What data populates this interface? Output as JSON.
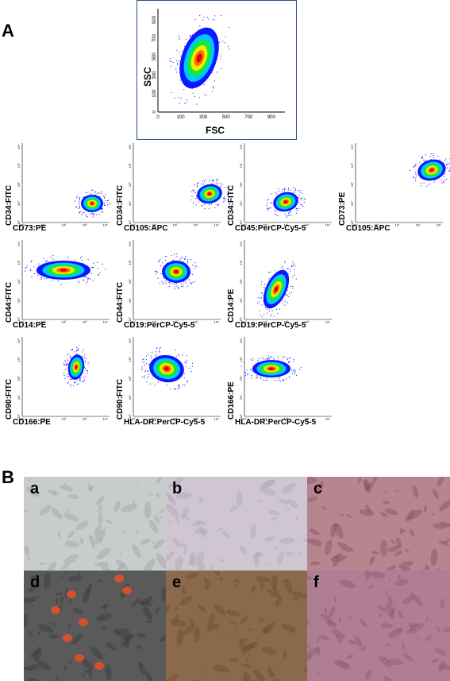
{
  "panels": {
    "a_label": "A",
    "b_label": "B"
  },
  "fsc_plot": {
    "x_label": "FSC",
    "y_label": "SSC",
    "x_ticks": [
      "0",
      "100",
      "300",
      "500",
      "700",
      "900"
    ],
    "y_ticks": [
      "0",
      "100",
      "300",
      "500",
      "700",
      "900"
    ]
  },
  "log_ticks": [
    "10°",
    "10¹",
    "10²",
    "10³",
    "10⁴"
  ],
  "flow_plots": [
    {
      "y_label": "CD34:FITC",
      "x_label": "CD73:PE"
    },
    {
      "y_label": "CD34:FITC",
      "x_label": "CD105:APC"
    },
    {
      "y_label": "CD34:FITC",
      "x_label": "CD45:PerCP-Cy5-5"
    },
    {
      "y_label": "CD73:PE",
      "x_label": "CD105:APC"
    },
    {
      "y_label": "CD44:FITC",
      "x_label": "CD14:PE"
    },
    {
      "y_label": "CD44:FITC",
      "x_label": "CD19:PerCP-Cy5-5"
    },
    {
      "y_label": "CD14:PE",
      "x_label": "CD19:PerCP-Cy5-5"
    },
    {
      "y_label": "CD90:FITC",
      "x_label": "CD166:PE"
    },
    {
      "y_label": "CD90:FITC",
      "x_label": "HLA-DR:PerCP-Cy5-5"
    },
    {
      "y_label": "CD166:PE",
      "x_label": "HLA-DR:PerCP-Cy5-5"
    }
  ],
  "micrographs": [
    {
      "label": "a",
      "color": "#c9cccc"
    },
    {
      "label": "b",
      "color": "#cfc6d2"
    },
    {
      "label": "c",
      "color": "#b5868f"
    },
    {
      "label": "d",
      "color": "#5a5a5a"
    },
    {
      "label": "e",
      "color": "#8a6a4a"
    },
    {
      "label": "f",
      "color": "#b07e92"
    }
  ]
}
